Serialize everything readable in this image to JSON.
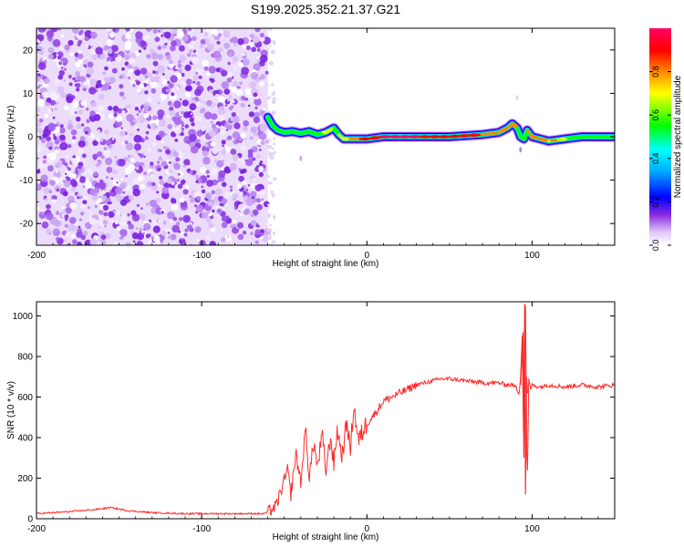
{
  "title": "S199.2025.352.21.37.G21",
  "chart_data": [
    {
      "type": "heatmap",
      "name": "spectrogram",
      "xlabel": "Height of straight line (km)",
      "ylabel": "Frequency (Hz)",
      "xlim": [
        -200,
        150
      ],
      "ylim": [
        -25,
        25
      ],
      "xticks": [
        -200,
        -100,
        0,
        100
      ],
      "xtick_labels": [
        "-200",
        "-100",
        "0",
        "100"
      ],
      "yticks": [
        -20,
        -10,
        0,
        10,
        20
      ],
      "ytick_labels": [
        "-20",
        "-10",
        "0",
        "10",
        "20"
      ],
      "noise_region_x": [
        -200,
        -60
      ],
      "ridge": {
        "x": [
          -60,
          -57,
          -54,
          -50,
          -45,
          -40,
          -35,
          -30,
          -25,
          -20,
          -17,
          -14,
          -10,
          -5,
          0,
          10,
          30,
          50,
          70,
          80,
          85,
          88,
          91,
          93,
          95,
          97,
          100,
          110,
          120,
          130,
          140,
          150
        ],
        "freq": [
          4.5,
          2.5,
          1.5,
          1.0,
          1.2,
          0.8,
          1.2,
          0.5,
          1.0,
          2.0,
          0.5,
          -0.5,
          -0.5,
          -0.5,
          -0.5,
          0.0,
          0.0,
          0.0,
          0.5,
          1.0,
          2.0,
          3.0,
          2.0,
          0.0,
          -0.5,
          1.5,
          0.0,
          -1.0,
          -0.5,
          0.0,
          0.0,
          0.0
        ],
        "amp": [
          0.35,
          0.45,
          0.5,
          0.5,
          0.55,
          0.5,
          0.6,
          0.6,
          0.7,
          0.7,
          0.65,
          0.75,
          0.85,
          0.9,
          0.95,
          1.0,
          1.0,
          0.95,
          0.9,
          0.85,
          0.8,
          0.9,
          0.7,
          0.6,
          0.6,
          0.7,
          0.9,
          0.85,
          0.7,
          0.45,
          0.4,
          0.35
        ]
      },
      "colorbar": {
        "label": "Normalized spectral amplitude",
        "range": [
          0.0,
          1.0
        ],
        "ticks": [
          0.0,
          0.2,
          0.4,
          0.6,
          0.8
        ],
        "tick_labels": [
          "0.0",
          "0.2",
          "0.4",
          "0.6",
          "0.8"
        ],
        "colors": [
          "#ffffff",
          "#e8d8f8",
          "#8a2be2",
          "#0000ff",
          "#00ffff",
          "#00ff00",
          "#ffff00",
          "#ff8800",
          "#ff0000",
          "#ff0066"
        ]
      }
    },
    {
      "type": "line",
      "name": "snr",
      "xlabel": "Height of straight line (km)",
      "ylabel": "SNR (10 * v/v)",
      "xlim": [
        -200,
        150
      ],
      "ylim": [
        0,
        1070
      ],
      "xticks": [
        -200,
        -100,
        0,
        100
      ],
      "xtick_labels": [
        "-200",
        "-100",
        "0",
        "100"
      ],
      "yticks": [
        0,
        200,
        400,
        600,
        800,
        1000
      ],
      "ytick_labels": [
        "0",
        "200",
        "400",
        "600",
        "800",
        "1000"
      ],
      "color": "#ff2a2a",
      "series": {
        "x": [
          -200,
          -180,
          -165,
          -155,
          -145,
          -130,
          -110,
          -90,
          -75,
          -62,
          -55,
          -48,
          -46,
          -43,
          -40,
          -37,
          -35,
          -32,
          -30,
          -27,
          -25,
          -22,
          -20,
          -18,
          -15,
          -12,
          -10,
          -8,
          -5,
          -2,
          0,
          5,
          10,
          15,
          20,
          25,
          30,
          35,
          40,
          45,
          50,
          60,
          70,
          80,
          85,
          88,
          90,
          92,
          93,
          94,
          95,
          96,
          97,
          98,
          99,
          100,
          105,
          110,
          120,
          130,
          140,
          150
        ],
        "y": [
          25,
          35,
          45,
          55,
          40,
          30,
          25,
          25,
          25,
          25,
          60,
          240,
          120,
          320,
          180,
          450,
          200,
          380,
          250,
          420,
          230,
          400,
          270,
          440,
          310,
          480,
          330,
          560,
          380,
          440,
          470,
          520,
          580,
          600,
          620,
          640,
          660,
          670,
          680,
          690,
          690,
          680,
          670,
          670,
          660,
          660,
          650,
          620,
          700,
          900,
          300,
          1060,
          120,
          680,
          640,
          660,
          650,
          660,
          650,
          660,
          650,
          660
        ]
      }
    }
  ]
}
